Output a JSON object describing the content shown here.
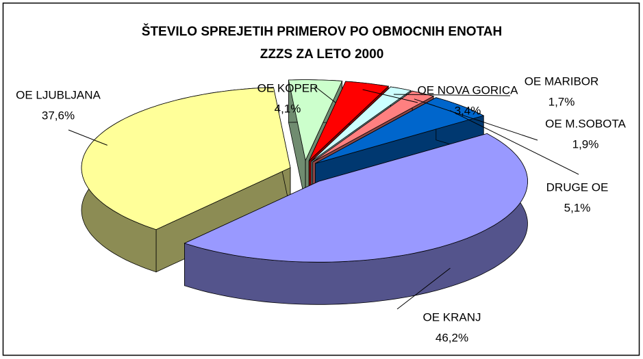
{
  "chart_data": {
    "type": "pie3d",
    "title": [
      "ŠTEVILO SPREJETIH PRIMEROV PO OBMOCNIH ENOTAH",
      "ZZZS  ZA LETO 2000"
    ],
    "categories": [
      "OE LJUBLJANA",
      "OE KOPER",
      "OE NOVA GORICA",
      "OE MARIBOR",
      "OE M.SOBOTA",
      "DRUGE OE",
      "OE KRANJ"
    ],
    "values": [
      37.6,
      4.1,
      3.4,
      1.7,
      1.9,
      5.1,
      46.2
    ],
    "value_labels": [
      "37,6%",
      "4,1%",
      "3,4%",
      "1,7%",
      "1,9%",
      "5,1%",
      "46,2%"
    ],
    "colors": [
      "#ffff99",
      "#ccffcc",
      "#ff0000",
      "#ccffff",
      "#ff8080",
      "#0066cc",
      "#9999ff"
    ]
  }
}
